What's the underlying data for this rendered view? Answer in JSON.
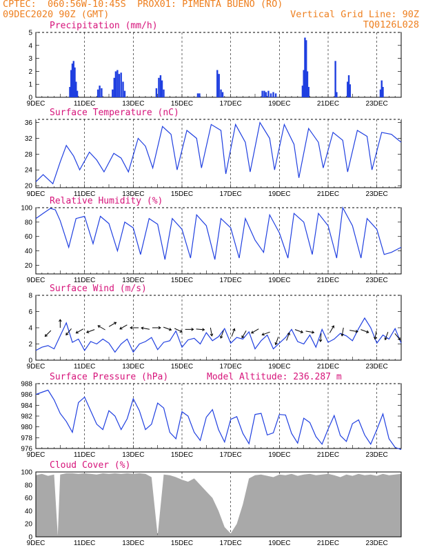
{
  "header": {
    "line1_left": "CPTEC:  060:56W-10:45S  PROX01: PIMENTA BUENO (RO)",
    "line2_left": "09DEC2020 90Z (GMT)",
    "line2_right": "Vertical Grid Line: 90Z",
    "line3_right": "TQ0126L028"
  },
  "colors": {
    "header": "#ee7f1f",
    "title": "#d6137a",
    "series": "#1f3fe0",
    "cloud": "#a9a9a9",
    "arrow": "#000000"
  },
  "x_axis": {
    "labels": [
      "9DEC",
      "11DEC",
      "13DEC",
      "15DEC",
      "17DEC",
      "19DEC",
      "21DEC",
      "23DEC"
    ],
    "grid": "dashed vertical lines at 00Z of odd days"
  },
  "chart_data": [
    {
      "type": "bar",
      "title": "Precipitation (mm/h)",
      "ylim": [
        0,
        5
      ],
      "yticks": [
        0,
        1,
        2,
        3,
        4,
        5
      ],
      "x_unit": "days since 9DEC 00Z",
      "bars": [
        [
          1.4,
          0.8
        ],
        [
          1.45,
          2.1
        ],
        [
          1.5,
          2.6
        ],
        [
          1.55,
          2.8
        ],
        [
          1.6,
          2.3
        ],
        [
          1.65,
          1.2
        ],
        [
          1.7,
          0.5
        ],
        [
          2.55,
          0.6
        ],
        [
          2.62,
          0.9
        ],
        [
          2.7,
          0.7
        ],
        [
          3.15,
          0.6
        ],
        [
          3.22,
          1.5
        ],
        [
          3.28,
          2.0
        ],
        [
          3.35,
          2.1
        ],
        [
          3.42,
          1.8
        ],
        [
          3.5,
          1.9
        ],
        [
          3.58,
          1.2
        ],
        [
          3.65,
          0.5
        ],
        [
          4.95,
          0.7
        ],
        [
          5.05,
          1.5
        ],
        [
          5.12,
          1.7
        ],
        [
          5.18,
          1.3
        ],
        [
          5.25,
          0.6
        ],
        [
          6.65,
          0.3
        ],
        [
          6.72,
          0.3
        ],
        [
          7.45,
          2.1
        ],
        [
          7.52,
          1.8
        ],
        [
          7.6,
          0.6
        ],
        [
          7.67,
          0.4
        ],
        [
          9.3,
          0.5
        ],
        [
          9.38,
          0.5
        ],
        [
          9.45,
          0.4
        ],
        [
          9.55,
          0.5
        ],
        [
          9.65,
          0.3
        ],
        [
          9.75,
          0.4
        ],
        [
          9.85,
          0.3
        ],
        [
          10.95,
          0.9
        ],
        [
          11.0,
          2.1
        ],
        [
          11.05,
          4.6
        ],
        [
          11.1,
          4.4
        ],
        [
          11.15,
          2.0
        ],
        [
          11.2,
          0.8
        ],
        [
          12.3,
          2.8
        ],
        [
          12.35,
          0.4
        ],
        [
          12.8,
          1.2
        ],
        [
          12.85,
          1.7
        ],
        [
          12.9,
          1.0
        ],
        [
          14.15,
          0.6
        ],
        [
          14.2,
          1.3
        ],
        [
          14.25,
          0.8
        ]
      ]
    },
    {
      "type": "line",
      "title": "Surface Temperature (nC)",
      "ylim": [
        19.5,
        36.8
      ],
      "yticks": [
        20,
        24,
        28,
        32,
        36
      ],
      "series": [
        {
          "x": [
            0.0,
            0.3,
            0.7,
            1.0,
            1.25,
            1.55,
            1.8,
            2.2,
            2.5,
            2.8,
            3.2,
            3.5,
            3.8,
            4.2,
            4.5,
            4.8,
            5.2,
            5.55,
            5.8,
            6.2,
            6.6,
            6.8,
            7.2,
            7.6,
            7.8,
            8.2,
            8.6,
            8.8,
            9.2,
            9.6,
            9.8,
            10.2,
            10.6,
            10.8,
            11.2,
            11.6,
            11.8,
            12.2,
            12.6,
            12.8,
            13.2,
            13.6,
            13.8,
            14.2,
            14.6,
            14.8,
            15.0
          ],
          "y": [
            21.0,
            22.8,
            20.5,
            26.0,
            30.2,
            27.5,
            24.0,
            28.5,
            26.5,
            23.5,
            28.2,
            27.0,
            23.5,
            32.0,
            30.0,
            24.5,
            35.0,
            33.0,
            24.0,
            34.0,
            32.0,
            24.5,
            35.5,
            34.0,
            23.0,
            35.5,
            31.0,
            23.5,
            36.0,
            32.0,
            24.0,
            35.5,
            30.5,
            22.0,
            34.5,
            31.0,
            24.5,
            33.5,
            31.5,
            23.5,
            34.0,
            32.5,
            24.0,
            33.5,
            33.0,
            32.0,
            31.0
          ]
        }
      ]
    },
    {
      "type": "line",
      "title": "Relative Humidity (%)",
      "ylim": [
        8,
        100
      ],
      "yticks": [
        20,
        40,
        60,
        80,
        100
      ],
      "series": [
        {
          "x": [
            0.0,
            0.3,
            0.6,
            0.8,
            1.0,
            1.35,
            1.65,
            2.0,
            2.35,
            2.65,
            3.0,
            3.35,
            3.65,
            4.0,
            4.3,
            4.65,
            5.0,
            5.3,
            5.6,
            6.0,
            6.35,
            6.6,
            7.0,
            7.35,
            7.6,
            8.0,
            8.35,
            8.6,
            9.0,
            9.35,
            9.6,
            10.0,
            10.35,
            10.6,
            11.0,
            11.35,
            11.6,
            12.0,
            12.35,
            12.6,
            13.0,
            13.35,
            13.6,
            14.0,
            14.3,
            14.6,
            15.0
          ],
          "y": [
            85.0,
            92.0,
            99.0,
            97.0,
            82.0,
            45.0,
            85.0,
            88.0,
            50.0,
            88.0,
            78.0,
            40.0,
            80.0,
            72.0,
            35.0,
            85.0,
            77.0,
            28.0,
            85.0,
            70.0,
            30.0,
            90.0,
            75.0,
            28.0,
            85.0,
            72.0,
            30.0,
            85.0,
            55.0,
            38.0,
            90.0,
            65.0,
            30.0,
            92.0,
            80.0,
            35.0,
            92.0,
            75.0,
            30.0,
            100.0,
            75.0,
            30.0,
            85.0,
            70.0,
            35.0,
            38.0,
            45.0
          ]
        }
      ]
    },
    {
      "type": "line",
      "title": "Surface Wind (m/s)",
      "ylim": [
        0,
        8
      ],
      "yticks": [
        0,
        2,
        4,
        6,
        8
      ],
      "series": [
        {
          "x": [
            0.0,
            0.25,
            0.5,
            0.75,
            1.0,
            1.25,
            1.5,
            1.75,
            2.0,
            2.25,
            2.5,
            2.75,
            3.0,
            3.25,
            3.5,
            3.75,
            4.0,
            4.25,
            4.5,
            4.75,
            5.0,
            5.25,
            5.5,
            5.75,
            6.0,
            6.25,
            6.5,
            6.75,
            7.0,
            7.25,
            7.5,
            7.75,
            8.0,
            8.25,
            8.5,
            8.75,
            9.0,
            9.25,
            9.5,
            9.75,
            10.0,
            10.25,
            10.5,
            10.75,
            11.0,
            11.25,
            11.5,
            11.75,
            12.0,
            12.25,
            12.5,
            12.75,
            13.0,
            13.25,
            13.5,
            13.75,
            14.0,
            14.25,
            14.5,
            14.75,
            15.0
          ],
          "y": [
            1.2,
            1.6,
            1.8,
            1.4,
            3.0,
            4.6,
            2.2,
            2.6,
            1.2,
            2.3,
            2.0,
            2.6,
            2.1,
            1.0,
            2.0,
            2.6,
            1.0,
            2.0,
            2.3,
            2.8,
            1.3,
            2.2,
            2.4,
            3.6,
            1.6,
            2.5,
            2.7,
            2.0,
            3.4,
            2.4,
            2.9,
            3.9,
            2.1,
            2.8,
            2.6,
            3.5,
            1.4,
            2.4,
            3.1,
            1.4,
            2.1,
            2.8,
            3.8,
            2.3,
            2.0,
            3.1,
            1.6,
            3.8,
            2.2,
            2.6,
            3.3,
            3.0,
            2.4,
            3.9,
            5.2,
            4.0,
            2.1,
            3.1,
            2.6,
            3.9,
            2.1
          ]
        }
      ],
      "wind_vectors": [
        {
          "x": 0.5,
          "y": 3.3,
          "dir": 225
        },
        {
          "x": 1.0,
          "y": 4.5,
          "dir": 0
        },
        {
          "x": 1.35,
          "y": 3.5,
          "dir": 220
        },
        {
          "x": 1.8,
          "y": 3.6,
          "dir": 240
        },
        {
          "x": 2.25,
          "y": 3.6,
          "dir": 250
        },
        {
          "x": 2.7,
          "y": 4.0,
          "dir": 300
        },
        {
          "x": 3.15,
          "y": 4.4,
          "dir": 60
        },
        {
          "x": 3.6,
          "y": 4.1,
          "dir": 240
        },
        {
          "x": 4.05,
          "y": 4.0,
          "dir": 270
        },
        {
          "x": 4.5,
          "y": 3.9,
          "dir": 280
        },
        {
          "x": 4.95,
          "y": 4.0,
          "dir": 90
        },
        {
          "x": 5.4,
          "y": 3.9,
          "dir": 110
        },
        {
          "x": 5.85,
          "y": 3.7,
          "dir": 115
        },
        {
          "x": 6.3,
          "y": 3.8,
          "dir": 90
        },
        {
          "x": 6.75,
          "y": 3.8,
          "dir": 95
        },
        {
          "x": 7.2,
          "y": 3.5,
          "dir": 170
        },
        {
          "x": 7.65,
          "y": 3.2,
          "dir": 200
        },
        {
          "x": 8.1,
          "y": 3.4,
          "dir": 20
        },
        {
          "x": 8.55,
          "y": 3.2,
          "dir": 210
        },
        {
          "x": 9.0,
          "y": 3.6,
          "dir": 240
        },
        {
          "x": 9.45,
          "y": 3.3,
          "dir": 250
        },
        {
          "x": 9.9,
          "y": 2.4,
          "dir": 200
        },
        {
          "x": 10.35,
          "y": 2.9,
          "dir": 20
        },
        {
          "x": 10.8,
          "y": 3.6,
          "dir": 110
        },
        {
          "x": 11.25,
          "y": 3.5,
          "dir": 100
        },
        {
          "x": 11.7,
          "y": 2.8,
          "dir": 185
        },
        {
          "x": 12.15,
          "y": 3.8,
          "dir": 30
        },
        {
          "x": 12.6,
          "y": 3.5,
          "dir": 190
        },
        {
          "x": 13.05,
          "y": 3.6,
          "dir": 100
        },
        {
          "x": 13.5,
          "y": 3.6,
          "dir": 110
        },
        {
          "x": 13.95,
          "y": 3.1,
          "dir": 190
        },
        {
          "x": 14.4,
          "y": 3.0,
          "dir": 200
        },
        {
          "x": 14.85,
          "y": 2.9,
          "dir": 140
        }
      ]
    },
    {
      "type": "line",
      "title": "Surface Pressure (hPa)",
      "annotation": "Model Altitude: 236.287 m",
      "ylim": [
        976,
        988
      ],
      "yticks": [
        976,
        978,
        980,
        982,
        984,
        986,
        988
      ],
      "series": [
        {
          "x": [
            0.0,
            0.25,
            0.5,
            0.75,
            1.0,
            1.25,
            1.5,
            1.75,
            2.0,
            2.25,
            2.5,
            2.75,
            3.0,
            3.25,
            3.5,
            3.75,
            4.0,
            4.25,
            4.5,
            4.75,
            5.0,
            5.25,
            5.5,
            5.75,
            6.0,
            6.25,
            6.5,
            6.75,
            7.0,
            7.25,
            7.5,
            7.75,
            8.0,
            8.25,
            8.5,
            8.75,
            9.0,
            9.25,
            9.5,
            9.75,
            10.0,
            10.25,
            10.5,
            10.75,
            11.0,
            11.25,
            11.5,
            11.75,
            12.0,
            12.25,
            12.5,
            12.75,
            13.0,
            13.25,
            13.5,
            13.75,
            14.0,
            14.25,
            14.5,
            14.75,
            15.0
          ],
          "y": [
            986.0,
            986.4,
            986.8,
            985.0,
            982.5,
            981.0,
            979.0,
            984.5,
            985.5,
            983.0,
            980.5,
            979.5,
            983.0,
            982.0,
            979.5,
            981.5,
            985.2,
            983.0,
            979.5,
            980.5,
            984.4,
            983.5,
            979.0,
            977.8,
            982.8,
            982.0,
            979.0,
            977.5,
            981.8,
            983.2,
            979.5,
            977.2,
            981.4,
            981.9,
            978.8,
            976.9,
            982.3,
            982.5,
            978.5,
            978.9,
            982.3,
            982.2,
            978.8,
            977.0,
            981.6,
            980.8,
            978.2,
            976.8,
            979.6,
            982.1,
            978.4,
            977.3,
            980.6,
            981.3,
            978.5,
            976.8,
            979.5,
            982.4,
            977.8,
            976.2,
            975.8
          ]
        }
      ]
    },
    {
      "type": "area",
      "title": "Cloud Cover (%)",
      "ylim": [
        0,
        100
      ],
      "yticks": [
        0,
        20,
        40,
        60,
        80,
        100
      ],
      "series": [
        {
          "x": [
            0.0,
            0.25,
            0.5,
            0.75,
            0.9,
            1.0,
            1.25,
            1.5,
            1.75,
            2.0,
            2.25,
            2.5,
            2.75,
            3.0,
            3.25,
            3.5,
            3.75,
            4.0,
            4.25,
            4.5,
            4.75,
            5.0,
            5.25,
            5.5,
            5.75,
            6.0,
            6.25,
            6.5,
            6.75,
            7.0,
            7.25,
            7.5,
            7.75,
            8.0,
            8.25,
            8.5,
            8.75,
            9.0,
            9.25,
            9.5,
            9.75,
            10.0,
            10.25,
            10.5,
            10.75,
            11.0,
            11.25,
            11.5,
            11.75,
            12.0,
            12.25,
            12.5,
            12.75,
            13.0,
            13.25,
            13.5,
            13.75,
            14.0,
            14.25,
            14.5,
            14.75,
            15.0
          ],
          "y": [
            95,
            97,
            94,
            96,
            2,
            96,
            98,
            98,
            97,
            98,
            97,
            96,
            98,
            97,
            98,
            97,
            98,
            97,
            98,
            97,
            92,
            2,
            96,
            95,
            92,
            88,
            85,
            90,
            80,
            70,
            60,
            40,
            15,
            5,
            20,
            50,
            90,
            95,
            96,
            94,
            92,
            96,
            95,
            97,
            94,
            96,
            97,
            95,
            96,
            97,
            95,
            92,
            96,
            94,
            97,
            95,
            96,
            94,
            97,
            95,
            96,
            97
          ]
        }
      ]
    }
  ]
}
